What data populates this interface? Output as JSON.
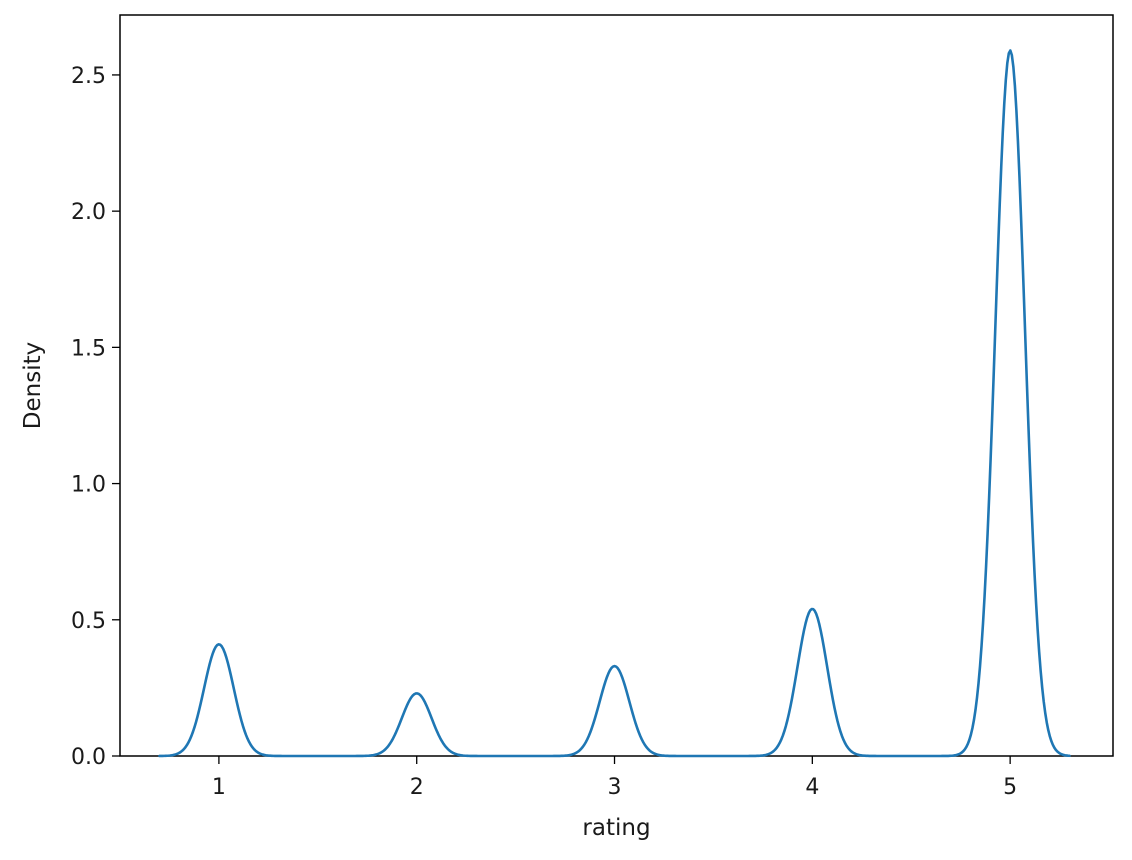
{
  "chart_data": {
    "type": "line",
    "title": "",
    "xlabel": "rating",
    "ylabel": "Density",
    "xlim": [
      0.5,
      5.52
    ],
    "ylim": [
      0.0,
      2.72
    ],
    "grid": false,
    "legend": "none",
    "x_ticks": [
      {
        "value": 1,
        "label": "1"
      },
      {
        "value": 2,
        "label": "2"
      },
      {
        "value": 3,
        "label": "3"
      },
      {
        "value": 4,
        "label": "4"
      },
      {
        "value": 5,
        "label": "5"
      }
    ],
    "y_ticks": [
      {
        "value": 0.0,
        "label": "0.0"
      },
      {
        "value": 0.5,
        "label": "0.5"
      },
      {
        "value": 1.0,
        "label": "1.0"
      },
      {
        "value": 1.5,
        "label": "1.5"
      },
      {
        "value": 2.0,
        "label": "2.0"
      },
      {
        "value": 2.5,
        "label": "2.5"
      }
    ],
    "series": [
      {
        "color": "#1f77b4",
        "x_range": [
          0.7,
          5.3
        ],
        "peaks": [
          {
            "x": 1.0,
            "y": 0.41
          },
          {
            "x": 2.0,
            "y": 0.23
          },
          {
            "x": 3.0,
            "y": 0.33
          },
          {
            "x": 4.0,
            "y": 0.54
          },
          {
            "x": 5.0,
            "y": 2.59
          }
        ]
      }
    ]
  }
}
